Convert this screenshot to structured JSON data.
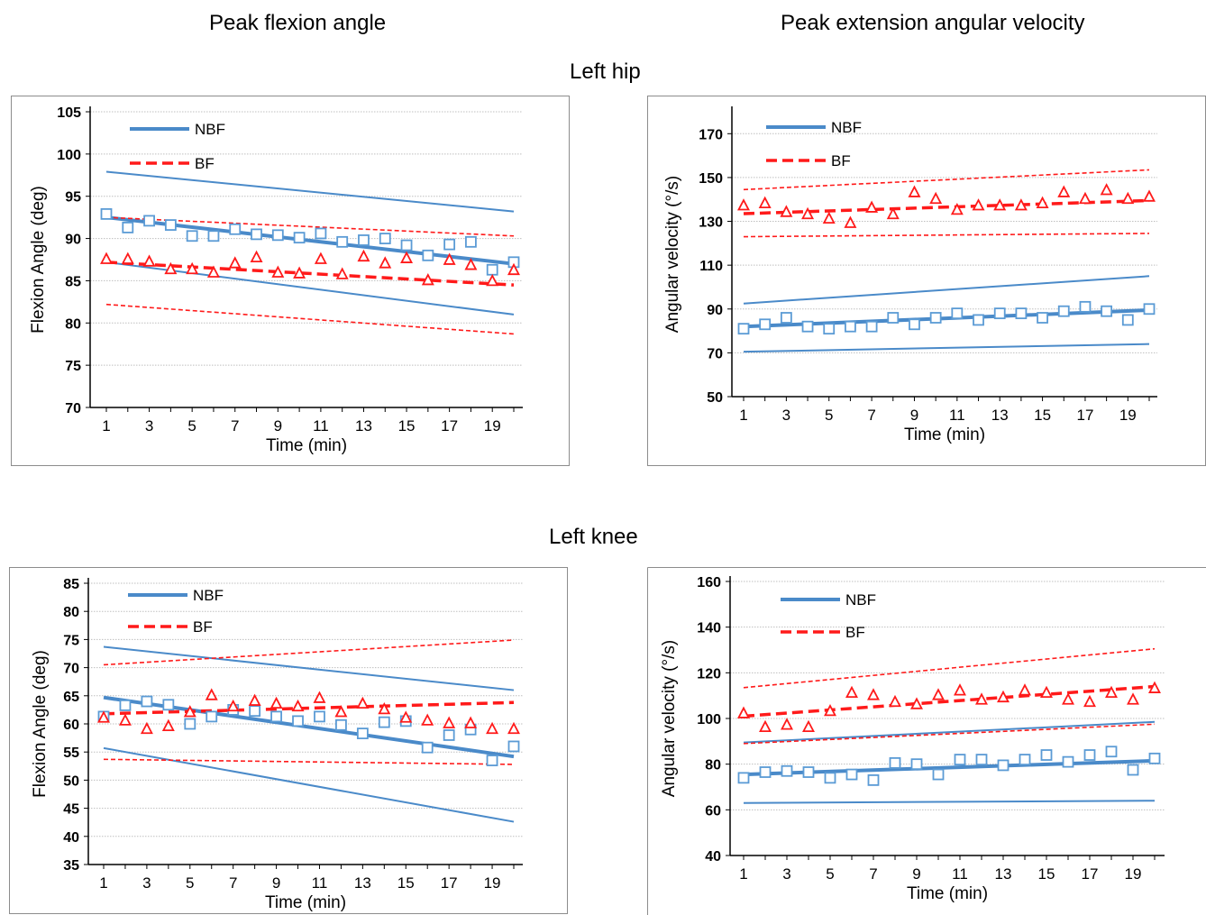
{
  "headers": {
    "col_left": "Peak flexion angle",
    "col_right": "Peak extension angular velocity",
    "row_top": "Left hip",
    "row_bottom": "Left knee"
  },
  "colors": {
    "nbf": "#4a8ac9",
    "nbf_marker": "#5b9bd5",
    "bf": "#ff1a1a",
    "grid": "#bfbfbf"
  },
  "chart_data": [
    {
      "type": "scatter",
      "panel": "hip-angle",
      "xlabel": "Time (min)",
      "ylabel": "Flexion Angle (deg)",
      "xlim": [
        1,
        20
      ],
      "ylim": [
        70,
        105
      ],
      "yticks": [
        70,
        75,
        80,
        85,
        90,
        95,
        100,
        105
      ],
      "xticks": [
        1,
        3,
        5,
        7,
        9,
        11,
        13,
        15,
        17,
        19
      ],
      "legend": [
        "NBF",
        "BF"
      ],
      "legend_position": "top-left",
      "series": [
        {
          "name": "NBF",
          "marker": "square",
          "x": [
            1,
            2,
            3,
            4,
            5,
            6,
            7,
            8,
            9,
            10,
            11,
            12,
            13,
            14,
            15,
            16,
            17,
            18,
            19,
            20
          ],
          "values": [
            92.9,
            91.3,
            92.1,
            91.6,
            90.3,
            90.3,
            91.1,
            90.5,
            90.4,
            90.1,
            90.6,
            89.6,
            89.8,
            90.0,
            89.2,
            88.0,
            89.3,
            89.6,
            86.3,
            87.2
          ]
        },
        {
          "name": "BF",
          "marker": "triangle",
          "x": [
            1,
            2,
            3,
            4,
            5,
            6,
            7,
            8,
            9,
            10,
            11,
            12,
            13,
            14,
            15,
            16,
            17,
            18,
            19,
            20
          ],
          "values": [
            87.5,
            87.5,
            87.2,
            86.3,
            86.3,
            85.9,
            87.0,
            87.7,
            85.9,
            85.8,
            87.5,
            85.7,
            87.8,
            87.0,
            87.6,
            85.0,
            87.4,
            86.8,
            84.9,
            86.2
          ]
        }
      ],
      "fits": [
        {
          "series": "NBF",
          "y_start": 92.5,
          "y_end": 87.0
        },
        {
          "series": "NBF",
          "band": "upper",
          "y_start": 97.9,
          "y_end": 93.2
        },
        {
          "series": "NBF",
          "band": "lower",
          "y_start": 87.2,
          "y_end": 81.0
        },
        {
          "series": "BF",
          "y_start": 87.2,
          "y_end": 84.5
        },
        {
          "series": "BF",
          "band": "upper",
          "y_start": 92.5,
          "y_end": 90.3
        },
        {
          "series": "BF",
          "band": "lower",
          "y_start": 82.2,
          "y_end": 78.7
        }
      ]
    },
    {
      "type": "scatter",
      "panel": "hip-velocity",
      "xlabel": "Time (min)",
      "ylabel": "Angular velocity (°/s)",
      "xlim": [
        1,
        20
      ],
      "ylim": [
        50,
        180
      ],
      "yticks": [
        50,
        70,
        90,
        110,
        130,
        150,
        170
      ],
      "xticks": [
        1,
        3,
        5,
        7,
        9,
        11,
        13,
        15,
        17,
        19
      ],
      "legend": [
        "NBF",
        "BF"
      ],
      "legend_position": "top-left",
      "series": [
        {
          "name": "NBF",
          "marker": "square",
          "x": [
            1,
            2,
            3,
            4,
            5,
            6,
            7,
            8,
            9,
            10,
            11,
            12,
            13,
            14,
            15,
            16,
            17,
            18,
            19,
            20
          ],
          "values": [
            81,
            83,
            86,
            82,
            81,
            82,
            82,
            86,
            83,
            86,
            88,
            85,
            88,
            88,
            86,
            89,
            91,
            89,
            85,
            90
          ]
        },
        {
          "name": "BF",
          "marker": "triangle",
          "x": [
            1,
            2,
            3,
            4,
            5,
            6,
            7,
            8,
            9,
            10,
            11,
            12,
            13,
            14,
            15,
            16,
            17,
            18,
            19,
            20
          ],
          "values": [
            137,
            138,
            134,
            133,
            131,
            129,
            136,
            133,
            143,
            140,
            135,
            137,
            137,
            137,
            138,
            143,
            140,
            144,
            140,
            141
          ]
        }
      ],
      "fits": [
        {
          "series": "NBF",
          "y_start": 82,
          "y_end": 89.5
        },
        {
          "series": "NBF",
          "band": "upper",
          "y_start": 92.5,
          "y_end": 105
        },
        {
          "series": "NBF",
          "band": "lower",
          "y_start": 70.5,
          "y_end": 74
        },
        {
          "series": "BF",
          "y_start": 133.5,
          "y_end": 139.5
        },
        {
          "series": "BF",
          "band": "upper",
          "y_start": 144.5,
          "y_end": 153.5
        },
        {
          "series": "BF",
          "band": "lower",
          "y_start": 123,
          "y_end": 124.5
        }
      ]
    },
    {
      "type": "scatter",
      "panel": "knee-angle",
      "xlabel": "Time (min)",
      "ylabel": "Flexion Angle (deg)",
      "xlim": [
        1,
        20
      ],
      "ylim": [
        35,
        85
      ],
      "yticks": [
        35,
        40,
        45,
        50,
        55,
        60,
        65,
        70,
        75,
        80,
        85
      ],
      "xticks": [
        1,
        3,
        5,
        7,
        9,
        11,
        13,
        15,
        17,
        19
      ],
      "legend": [
        "NBF",
        "BF"
      ],
      "legend_position": "top-left",
      "series": [
        {
          "name": "NBF",
          "marker": "square",
          "x": [
            1,
            2,
            3,
            4,
            5,
            6,
            7,
            8,
            9,
            10,
            11,
            12,
            13,
            14,
            15,
            16,
            17,
            18,
            19,
            20
          ],
          "values": [
            61.3,
            63.3,
            64.0,
            63.4,
            60.0,
            61.3,
            62.5,
            62.3,
            61.3,
            60.5,
            61.3,
            59.8,
            58.3,
            60.3,
            60.5,
            55.8,
            58.0,
            59.0,
            53.5,
            56.0
          ]
        },
        {
          "name": "BF",
          "marker": "triangle",
          "x": [
            1,
            2,
            3,
            4,
            5,
            6,
            7,
            8,
            9,
            10,
            11,
            12,
            13,
            14,
            15,
            16,
            17,
            18,
            19,
            20
          ],
          "values": [
            61.0,
            60.5,
            59.0,
            59.5,
            62.0,
            65.0,
            63.0,
            64.0,
            63.5,
            63.0,
            64.5,
            62.0,
            63.5,
            62.5,
            61.0,
            60.5,
            60.0,
            60.0,
            59.0,
            59.0
          ]
        }
      ],
      "fits": [
        {
          "series": "NBF",
          "y_start": 64.7,
          "y_end": 54.2
        },
        {
          "series": "NBF",
          "band": "upper",
          "y_start": 73.7,
          "y_end": 66.0
        },
        {
          "series": "NBF",
          "band": "lower",
          "y_start": 55.7,
          "y_end": 42.6
        },
        {
          "series": "BF",
          "y_start": 61.8,
          "y_end": 63.8
        },
        {
          "series": "BF",
          "band": "upper",
          "y_start": 70.5,
          "y_end": 74.9
        },
        {
          "series": "BF",
          "band": "lower",
          "y_start": 53.7,
          "y_end": 52.8
        }
      ]
    },
    {
      "type": "scatter",
      "panel": "knee-velocity",
      "xlabel": "Time (min)",
      "ylabel": "Angular velocity (°/s)",
      "xlim": [
        1,
        20
      ],
      "ylim": [
        40,
        160
      ],
      "yticks": [
        40,
        60,
        80,
        100,
        120,
        140,
        160
      ],
      "xticks": [
        1,
        3,
        5,
        7,
        9,
        11,
        13,
        15,
        17,
        19
      ],
      "legend": [
        "NBF",
        "BF"
      ],
      "legend_position": "top-left",
      "series": [
        {
          "name": "NBF",
          "marker": "square",
          "x": [
            1,
            2,
            3,
            4,
            5,
            6,
            7,
            8,
            9,
            10,
            11,
            12,
            13,
            14,
            15,
            16,
            17,
            18,
            19,
            20
          ],
          "values": [
            74,
            76.5,
            77,
            76.5,
            74,
            75.5,
            73,
            80.5,
            80,
            75.5,
            82,
            82,
            79.5,
            82,
            84,
            81,
            84,
            85.5,
            77.5,
            82.5
          ]
        },
        {
          "name": "BF",
          "marker": "triangle",
          "x": [
            1,
            2,
            3,
            4,
            5,
            6,
            7,
            8,
            9,
            10,
            11,
            12,
            13,
            14,
            15,
            16,
            17,
            18,
            19,
            20
          ],
          "values": [
            102,
            96,
            97,
            96,
            103,
            111,
            110,
            107,
            106,
            110,
            112,
            108,
            109,
            112,
            111,
            108,
            107,
            111,
            108,
            113
          ]
        }
      ],
      "fits": [
        {
          "series": "NBF",
          "y_start": 75.5,
          "y_end": 81.5
        },
        {
          "series": "NBF",
          "band": "upper",
          "y_start": 89.5,
          "y_end": 98.5
        },
        {
          "series": "NBF",
          "band": "lower",
          "y_start": 63,
          "y_end": 64
        },
        {
          "series": "BF",
          "y_start": 101,
          "y_end": 114
        },
        {
          "series": "BF",
          "band": "upper",
          "y_start": 113.5,
          "y_end": 130.5
        },
        {
          "series": "BF",
          "band": "lower",
          "y_start": 89,
          "y_end": 97.5
        }
      ]
    }
  ]
}
